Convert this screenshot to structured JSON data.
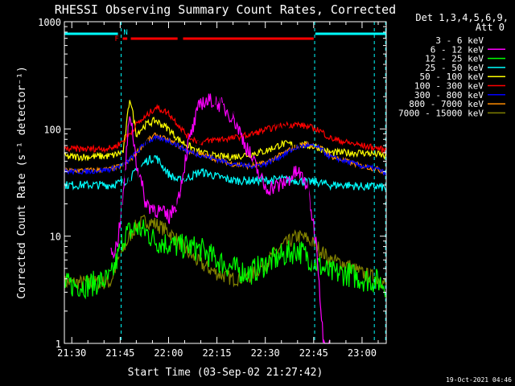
{
  "title": "RHESSI Observing Summary Count Rates, Corrected",
  "xlabel": "Start Time (03-Sep-02 21:27:42)",
  "ylabel": "Corrected Count Rate (s⁻¹ detector⁻¹)",
  "footer_date": "19-Oct-2021 04:46",
  "legend_header": [
    "Det 1,3,4,5,6,9,",
    "Att 0"
  ],
  "flag_labels": {
    "F": "F",
    "N": "N"
  },
  "colors": {
    "background": "#000000",
    "axes": "#ffffff",
    "cyan_lines": "#00ffff",
    "flag_red": "#ff0000"
  },
  "chart_data": {
    "type": "line",
    "yscale": "log",
    "xlim": [
      "21:27:42",
      "23:07:30"
    ],
    "ylim": [
      1,
      1000
    ],
    "grid": false,
    "legend_position": "right",
    "x_tick_labels": [
      "21:30",
      "21:45",
      "22:00",
      "22:15",
      "22:30",
      "22:45",
      "23:00"
    ],
    "y_tick_labels": [
      "1",
      "10",
      "100",
      "1000"
    ],
    "x_tick_minutes": [
      30,
      45,
      60,
      75,
      90,
      105,
      120
    ],
    "y_tick_values": [
      1,
      10,
      100,
      1000
    ],
    "x": [
      27.7,
      35,
      42,
      44,
      46,
      48,
      50,
      53,
      56,
      60,
      63,
      66,
      70,
      75,
      80,
      85,
      90,
      95,
      100,
      103,
      106,
      108,
      110,
      115,
      120,
      125,
      127.5
    ],
    "series": [
      {
        "name": "3 - 6 keV",
        "color": "#000000",
        "values": [
          null,
          null,
          null,
          1,
          45,
          30,
          28,
          80,
          45,
          25,
          20,
          45,
          80,
          200,
          160,
          120,
          130,
          110,
          70,
          45,
          1,
          1,
          null,
          null,
          null,
          null,
          null
        ]
      },
      {
        "name": "6 - 12 keV",
        "color": "#ff00ff",
        "values": [
          null,
          null,
          7,
          8,
          25,
          150,
          50,
          20,
          18,
          15,
          22,
          70,
          180,
          180,
          130,
          60,
          28,
          30,
          40,
          30,
          8,
          1,
          1,
          null,
          null,
          null,
          null
        ]
      },
      {
        "name": "12 - 25 keV",
        "color": "#00ff00",
        "values": [
          3.5,
          3.5,
          4,
          6,
          10,
          11,
          12,
          11,
          9,
          8.5,
          8,
          8,
          7.5,
          6,
          5,
          4.5,
          5.5,
          6.5,
          7.5,
          6.5,
          5.5,
          5,
          4.5,
          4.5,
          4,
          3.8,
          3.5
        ]
      },
      {
        "name": "25 - 50 keV",
        "color": "#00ffff",
        "values": [
          30,
          30,
          30,
          31,
          32,
          35,
          40,
          50,
          55,
          38,
          33,
          35,
          40,
          36,
          33,
          33,
          33,
          34,
          33,
          32,
          32,
          31,
          30,
          30,
          29,
          29,
          28
        ]
      },
      {
        "name": "50 - 100 keV",
        "color": "#ffff00",
        "values": [
          55,
          55,
          56,
          58,
          62,
          200,
          90,
          110,
          120,
          100,
          80,
          70,
          60,
          55,
          55,
          58,
          62,
          72,
          72,
          70,
          68,
          64,
          60,
          60,
          60,
          58,
          55
        ]
      },
      {
        "name": "100 - 300 keV",
        "color": "#ff0000",
        "values": [
          65,
          65,
          66,
          70,
          78,
          90,
          110,
          130,
          160,
          140,
          110,
          85,
          75,
          80,
          82,
          88,
          98,
          108,
          110,
          105,
          100,
          92,
          82,
          75,
          70,
          66,
          62
        ]
      },
      {
        "name": "300 - 800 keV",
        "color": "#0000ff",
        "values": [
          40,
          40,
          42,
          44,
          46,
          52,
          60,
          75,
          82,
          78,
          70,
          62,
          57,
          52,
          47,
          45,
          47,
          56,
          68,
          70,
          68,
          62,
          55,
          50,
          45,
          42,
          38
        ]
      },
      {
        "name": "800 - 7000 keV",
        "color": "#ff8c00",
        "values": [
          41,
          41,
          42,
          44,
          46,
          51,
          60,
          76,
          88,
          78,
          70,
          62,
          58,
          52,
          47,
          45,
          48,
          58,
          70,
          72,
          70,
          63,
          56,
          50,
          45,
          42,
          39
        ]
      },
      {
        "name": "7000 - 15000 keV",
        "color": "#808000",
        "values": [
          3.7,
          3.7,
          3.7,
          5.5,
          7.5,
          10,
          12.5,
          14,
          13,
          11,
          9,
          7,
          5.5,
          4.5,
          4,
          4.2,
          5.5,
          8,
          10,
          9.5,
          8,
          7,
          6,
          5.5,
          4.5,
          4,
          3.5
        ]
      }
    ],
    "markers": {
      "saa_lines_minutes": [
        45.3,
        105.3,
        123.8,
        127.3
      ],
      "cyan_bars": [
        [
          27.7,
          44.3
        ],
        [
          105.5,
          127.5
        ]
      ],
      "red_bars": [
        [
          45.8,
          47.2
        ],
        [
          48.3,
          62.8
        ],
        [
          64.5,
          105.0
        ]
      ],
      "flag_F_minute": 44.8,
      "flag_N_minute": 46.0
    }
  }
}
